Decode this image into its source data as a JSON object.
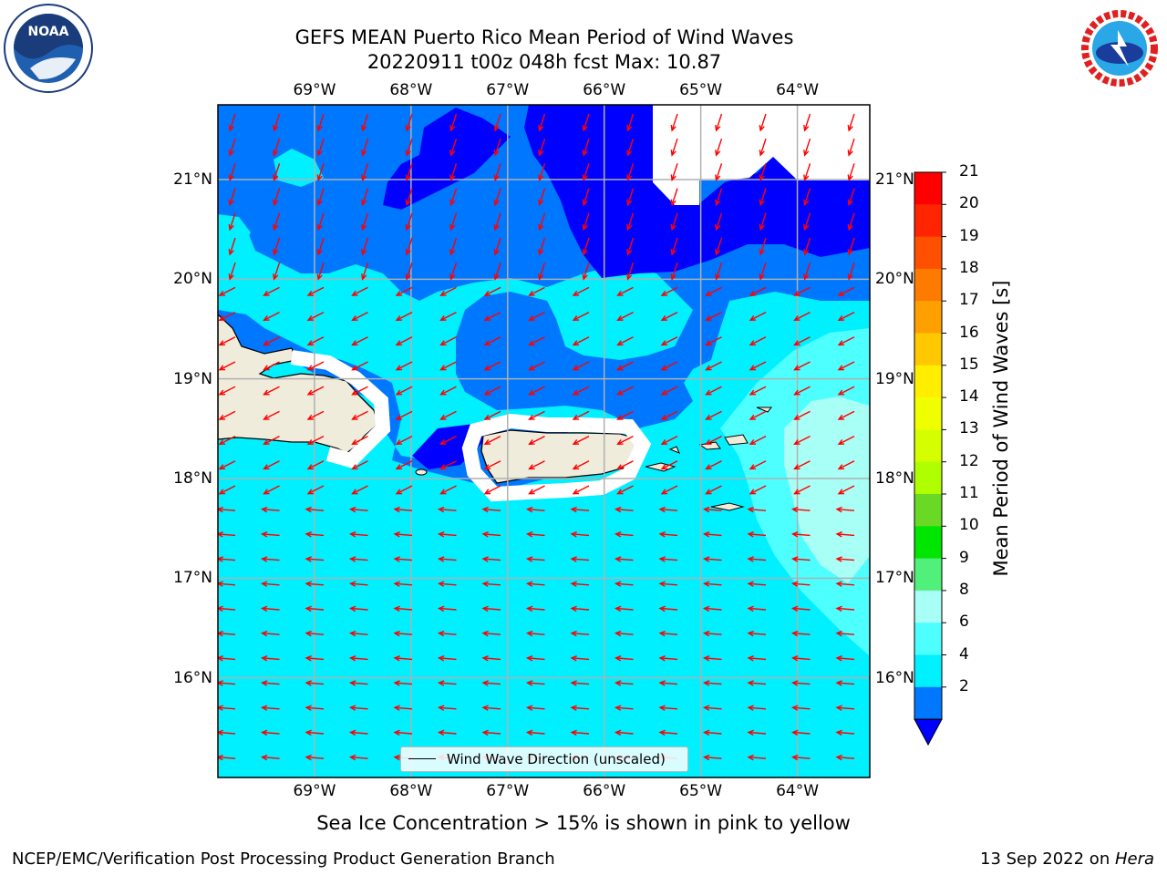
{
  "header": {
    "title_line1": "GEFS MEAN Puerto Rico Mean Period of Wind Waves",
    "title_line2": "20220911 t00z 048h fcst   Max: 10.87"
  },
  "logos": {
    "left": "noaa-logo",
    "right": "nws-logo"
  },
  "map": {
    "lon_labels": [
      "69°W",
      "68°W",
      "67°W",
      "66°W",
      "65°W",
      "64°W"
    ],
    "lat_labels": [
      "21°N",
      "20°N",
      "19°N",
      "18°N",
      "17°N",
      "16°N"
    ],
    "lon_range": [
      -70.0,
      -63.25
    ],
    "lat_range": [
      15.0,
      21.75
    ],
    "legend_label": "Wind Wave Direction (unscaled)",
    "arrow_color": "#ff0000",
    "land_color": "#efecdc",
    "coast_color": "#000000"
  },
  "colorbar": {
    "label": "Mean Period of Wind Waves [s]",
    "ticks": [
      "21",
      "20",
      "19",
      "18",
      "17",
      "16",
      "15",
      "14",
      "13",
      "12",
      "11",
      "10",
      "9",
      "8",
      "6",
      "4",
      "2"
    ],
    "colors": [
      "#ff0000",
      "#ff2500",
      "#ff5000",
      "#ff7b00",
      "#ffa000",
      "#ffc800",
      "#ffee00",
      "#f0ff00",
      "#d5ff00",
      "#b0ff00",
      "#6ad925",
      "#00e600",
      "#50f07a",
      "#a8fff5",
      "#4dffff",
      "#00f0ff",
      "#0077ff",
      "#0000ff"
    ]
  },
  "notes": {
    "sea_ice": "Sea Ice Concentration > 15% is shown in pink to yellow"
  },
  "footer": {
    "left": "NCEP/EMC/Verification Post Processing Product Generation Branch",
    "date": "13 Sep 2022 on ",
    "machine": "Hera"
  }
}
